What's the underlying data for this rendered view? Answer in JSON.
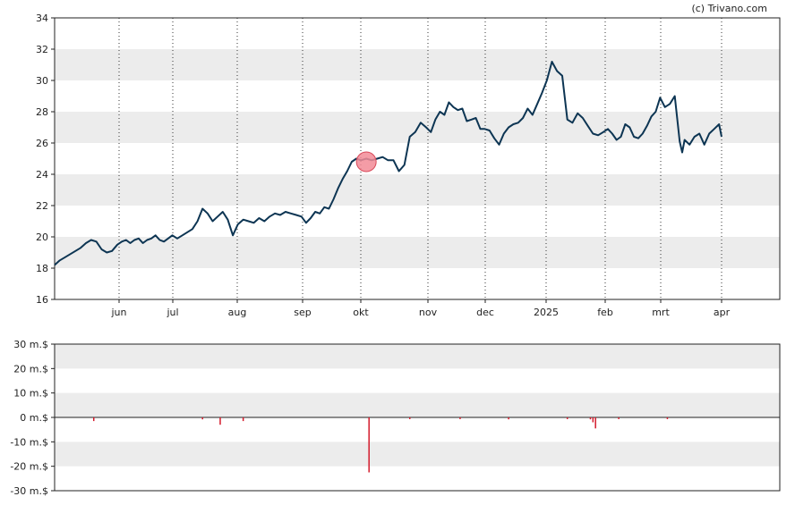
{
  "credit": "(c) Trivano.com",
  "colors": {
    "price_line": "#0d3553",
    "band": "#ececec",
    "marker_fill": "#f28b96",
    "marker_stroke": "#d84a5a",
    "volume_bar": "#d41b2c",
    "axis": "#222222"
  },
  "chart_data": [
    {
      "type": "line",
      "ylim": [
        16,
        34
      ],
      "y_ticks": [
        "16",
        "18",
        "20",
        "22",
        "24",
        "26",
        "28",
        "30",
        "32",
        "34"
      ],
      "x_ticks": [
        "jun",
        "jul",
        "aug",
        "sep",
        "okt",
        "nov",
        "dec",
        "2025",
        "feb",
        "mrt",
        "apr"
      ],
      "grid": "vertical dotted month lines, alternating horizontal bands",
      "series": [
        {
          "points": [
            [
              0,
              18.2
            ],
            [
              2,
              18.5
            ],
            [
              4,
              18.7
            ],
            [
              6,
              18.9
            ],
            [
              8,
              19.1
            ],
            [
              10,
              19.3
            ],
            [
              12,
              19.6
            ],
            [
              14,
              19.8
            ],
            [
              16,
              19.7
            ],
            [
              18,
              19.2
            ],
            [
              20,
              19.0
            ],
            [
              22,
              19.1
            ],
            [
              24,
              19.5
            ],
            [
              26,
              19.7
            ],
            [
              28,
              19.8
            ],
            [
              30,
              19.6
            ],
            [
              32,
              19.8
            ],
            [
              34,
              19.9
            ],
            [
              36,
              19.6
            ],
            [
              38,
              19.8
            ],
            [
              40,
              19.9
            ],
            [
              42,
              20.1
            ],
            [
              44,
              19.8
            ],
            [
              46,
              19.7
            ],
            [
              48,
              19.9
            ],
            [
              50,
              20.1
            ],
            [
              52,
              19.9
            ],
            [
              54,
              20.1
            ],
            [
              56,
              20.3
            ],
            [
              58,
              20.5
            ],
            [
              60,
              21.0
            ],
            [
              62,
              21.8
            ],
            [
              64,
              21.5
            ],
            [
              66,
              21.0
            ],
            [
              68,
              21.3
            ],
            [
              70,
              21.6
            ],
            [
              72,
              21.1
            ],
            [
              74,
              20.1
            ],
            [
              76,
              20.8
            ],
            [
              78,
              21.1
            ],
            [
              80,
              21.0
            ],
            [
              82,
              20.9
            ],
            [
              84,
              21.2
            ],
            [
              86,
              21.0
            ],
            [
              88,
              21.3
            ],
            [
              90,
              21.5
            ],
            [
              92,
              21.4
            ],
            [
              94,
              21.6
            ],
            [
              96,
              21.5
            ],
            [
              98,
              21.4
            ],
            [
              100,
              21.3
            ],
            [
              102,
              20.9
            ],
            [
              104,
              21.2
            ],
            [
              106,
              21.6
            ],
            [
              108,
              21.5
            ],
            [
              110,
              21.9
            ],
            [
              112,
              21.8
            ],
            [
              114,
              22.4
            ],
            [
              116,
              23.1
            ],
            [
              118,
              23.7
            ],
            [
              120,
              24.2
            ],
            [
              122,
              24.8
            ],
            [
              124,
              25.0
            ],
            [
              126,
              24.9
            ],
            [
              128,
              25.0
            ],
            [
              130,
              24.9
            ],
            [
              132,
              25.0
            ],
            [
              134,
              25.1
            ],
            [
              136,
              24.9
            ],
            [
              138,
              24.9
            ],
            [
              140,
              24.2
            ],
            [
              142,
              24.6
            ],
            [
              144,
              26.4
            ],
            [
              146,
              26.7
            ],
            [
              148,
              27.3
            ],
            [
              150,
              27.0
            ],
            [
              152,
              26.7
            ],
            [
              154,
              27.5
            ],
            [
              156,
              28.0
            ],
            [
              158,
              27.8
            ],
            [
              160,
              28.6
            ],
            [
              162,
              28.3
            ],
            [
              164,
              28.1
            ],
            [
              166,
              28.2
            ],
            [
              168,
              27.4
            ],
            [
              170,
              27.5
            ],
            [
              172,
              27.6
            ],
            [
              174,
              26.9
            ],
            [
              176,
              26.9
            ],
            [
              178,
              26.8
            ],
            [
              180,
              26.3
            ],
            [
              182,
              25.9
            ],
            [
              184,
              26.6
            ],
            [
              186,
              27.0
            ],
            [
              188,
              27.2
            ],
            [
              190,
              27.3
            ],
            [
              192,
              27.6
            ],
            [
              194,
              28.2
            ],
            [
              196,
              27.8
            ],
            [
              198,
              28.5
            ],
            [
              200,
              29.2
            ],
            [
              202,
              30.0
            ],
            [
              204,
              31.2
            ],
            [
              206,
              30.6
            ],
            [
              208,
              30.3
            ],
            [
              210,
              27.5
            ],
            [
              212,
              27.3
            ],
            [
              214,
              27.9
            ],
            [
              216,
              27.6
            ],
            [
              218,
              27.1
            ],
            [
              220,
              26.6
            ],
            [
              222,
              26.5
            ],
            [
              224,
              26.7
            ],
            [
              226,
              26.9
            ],
            [
              228,
              26.6
            ],
            [
              230,
              26.2
            ],
            [
              232,
              26.4
            ],
            [
              234,
              27.2
            ],
            [
              236,
              27.0
            ],
            [
              238,
              26.4
            ],
            [
              240,
              26.3
            ],
            [
              242,
              26.6
            ],
            [
              244,
              27.1
            ],
            [
              246,
              27.7
            ],
            [
              248,
              28.0
            ],
            [
              250,
              28.9
            ],
            [
              252,
              28.3
            ],
            [
              254,
              28.5
            ],
            [
              256,
              29.0
            ],
            [
              258,
              26.1
            ],
            [
              259,
              25.4
            ],
            [
              260,
              26.2
            ],
            [
              262,
              25.9
            ],
            [
              264,
              26.4
            ],
            [
              266,
              26.6
            ],
            [
              268,
              25.9
            ],
            [
              270,
              26.6
            ],
            [
              272,
              26.9
            ],
            [
              274,
              27.2
            ],
            [
              275,
              26.4
            ]
          ]
        }
      ],
      "highlight": {
        "x": 128,
        "y": 24.8
      }
    },
    {
      "type": "bar",
      "ylim": [
        -30,
        30
      ],
      "y_ticks": [
        "30 m.$",
        "20 m.$",
        "10 m.$",
        "0 m.$",
        "-10 m.$",
        "-20 m.$",
        "-30 m.$"
      ],
      "series": [
        {
          "bars": [
            [
              15,
              -1.5
            ],
            [
              62,
              -0.8
            ],
            [
              69,
              -3.0
            ],
            [
              78,
              -1.5
            ],
            [
              129,
              -22.5
            ],
            [
              144,
              -0.7
            ],
            [
              165,
              -0.7
            ],
            [
              186,
              -0.8
            ],
            [
              210,
              -0.7
            ],
            [
              219,
              -0.8
            ],
            [
              220,
              -2.0
            ],
            [
              221,
              -4.5
            ],
            [
              231,
              -0.7
            ],
            [
              253,
              -0.7
            ]
          ]
        }
      ]
    }
  ]
}
